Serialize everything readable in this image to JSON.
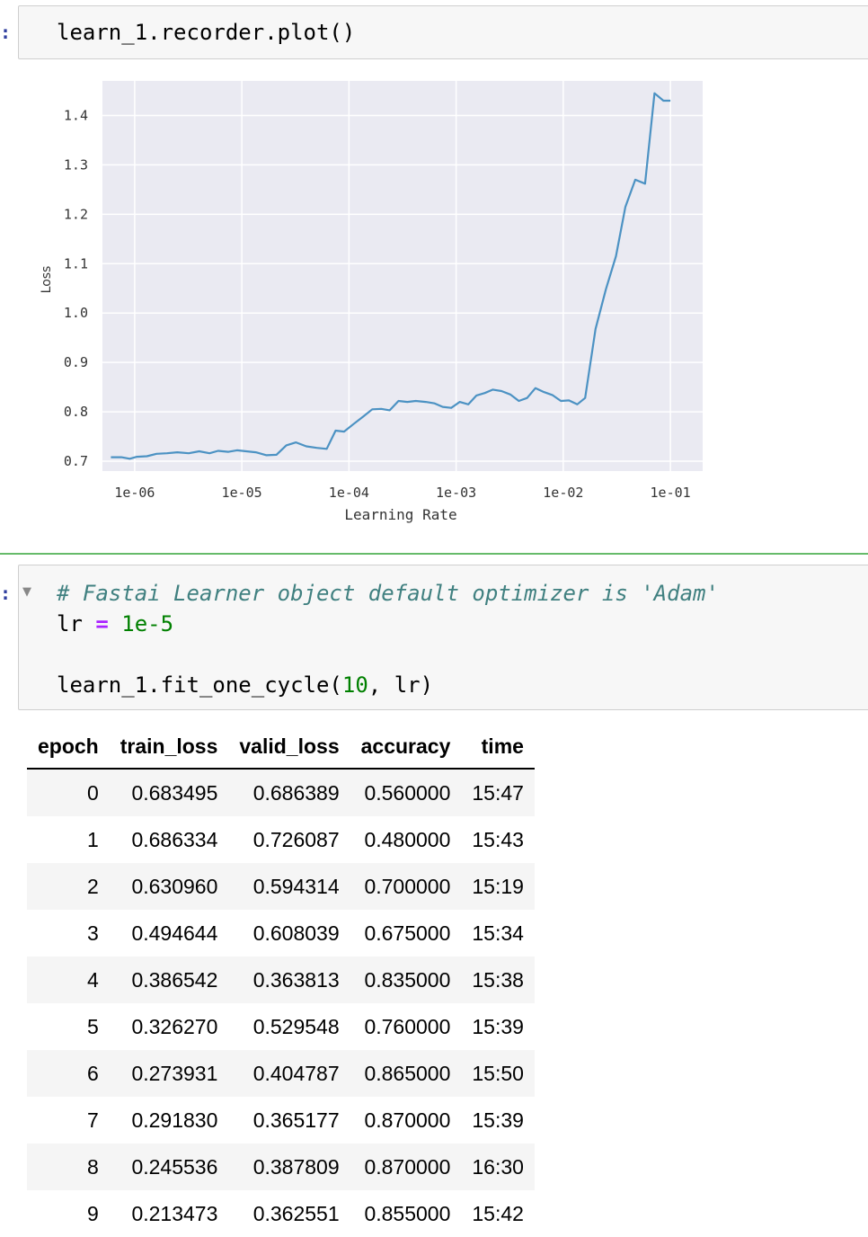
{
  "cell1": {
    "code_line": "learn_1.recorder.plot()"
  },
  "chart_data": {
    "type": "line",
    "xlabel": "Learning Rate",
    "ylabel": "Loss",
    "x_scale": "log",
    "x_ticks": [
      "1e-06",
      "1e-05",
      "1e-04",
      "1e-03",
      "1e-02",
      "1e-01"
    ],
    "y_ticks": [
      "0.7",
      "0.8",
      "0.9",
      "1.0",
      "1.1",
      "1.2",
      "1.3",
      "1.4"
    ],
    "xlim": [
      5e-07,
      0.2
    ],
    "ylim": [
      0.68,
      1.47
    ],
    "grid": true,
    "series": [
      {
        "color": "#4c92c3",
        "x": [
          6e-07,
          7.5e-07,
          9e-07,
          1.05e-06,
          1.3e-06,
          1.6e-06,
          2e-06,
          2.5e-06,
          3.2e-06,
          4e-06,
          5e-06,
          6e-06,
          7.5e-06,
          9e-06,
          1.1e-05,
          1.35e-05,
          1.7e-05,
          2.1e-05,
          2.6e-05,
          3.2e-05,
          4e-05,
          5e-05,
          6.2e-05,
          7.5e-05,
          9e-05,
          0.00011,
          0.000135,
          0.000165,
          0.0002,
          0.00024,
          0.00029,
          0.00035,
          0.00042,
          0.00052,
          0.00063,
          0.00075,
          0.0009,
          0.00108,
          0.0013,
          0.00155,
          0.00185,
          0.0022,
          0.00265,
          0.0032,
          0.00385,
          0.0046,
          0.0055,
          0.0066,
          0.0079,
          0.0095,
          0.0113,
          0.0135,
          0.016,
          0.02,
          0.025,
          0.031,
          0.038,
          0.047,
          0.058,
          0.071,
          0.086,
          0.1
        ],
        "y": [
          0.708,
          0.708,
          0.705,
          0.709,
          0.71,
          0.715,
          0.716,
          0.718,
          0.716,
          0.72,
          0.716,
          0.721,
          0.719,
          0.722,
          0.72,
          0.718,
          0.712,
          0.713,
          0.732,
          0.738,
          0.73,
          0.727,
          0.725,
          0.762,
          0.76,
          0.775,
          0.79,
          0.805,
          0.806,
          0.803,
          0.822,
          0.82,
          0.822,
          0.82,
          0.817,
          0.81,
          0.808,
          0.82,
          0.815,
          0.833,
          0.838,
          0.845,
          0.842,
          0.835,
          0.822,
          0.828,
          0.848,
          0.84,
          0.834,
          0.822,
          0.823,
          0.815,
          0.828,
          0.968,
          1.048,
          1.115,
          1.215,
          1.27,
          1.262,
          1.445,
          1.43,
          1.43
        ]
      }
    ]
  },
  "cell2": {
    "comment": "# Fastai Learner object default optimizer is 'Adam'",
    "line2_var": "lr ",
    "line2_op": "=",
    "line2_val": " 1e-5",
    "line4_call": "learn_1.fit_one_cycle(",
    "line4_num": "10",
    "line4_rest": ", lr)"
  },
  "table": {
    "headers": [
      "epoch",
      "train_loss",
      "valid_loss",
      "accuracy",
      "time"
    ],
    "rows": [
      [
        "0",
        "0.683495",
        "0.686389",
        "0.560000",
        "15:47"
      ],
      [
        "1",
        "0.686334",
        "0.726087",
        "0.480000",
        "15:43"
      ],
      [
        "2",
        "0.630960",
        "0.594314",
        "0.700000",
        "15:19"
      ],
      [
        "3",
        "0.494644",
        "0.608039",
        "0.675000",
        "15:34"
      ],
      [
        "4",
        "0.386542",
        "0.363813",
        "0.835000",
        "15:38"
      ],
      [
        "5",
        "0.326270",
        "0.529548",
        "0.760000",
        "15:39"
      ],
      [
        "6",
        "0.273931",
        "0.404787",
        "0.865000",
        "15:50"
      ],
      [
        "7",
        "0.291830",
        "0.365177",
        "0.870000",
        "15:39"
      ],
      [
        "8",
        "0.245536",
        "0.387809",
        "0.870000",
        "16:30"
      ],
      [
        "9",
        "0.213473",
        "0.362551",
        "0.855000",
        "15:42"
      ]
    ]
  }
}
